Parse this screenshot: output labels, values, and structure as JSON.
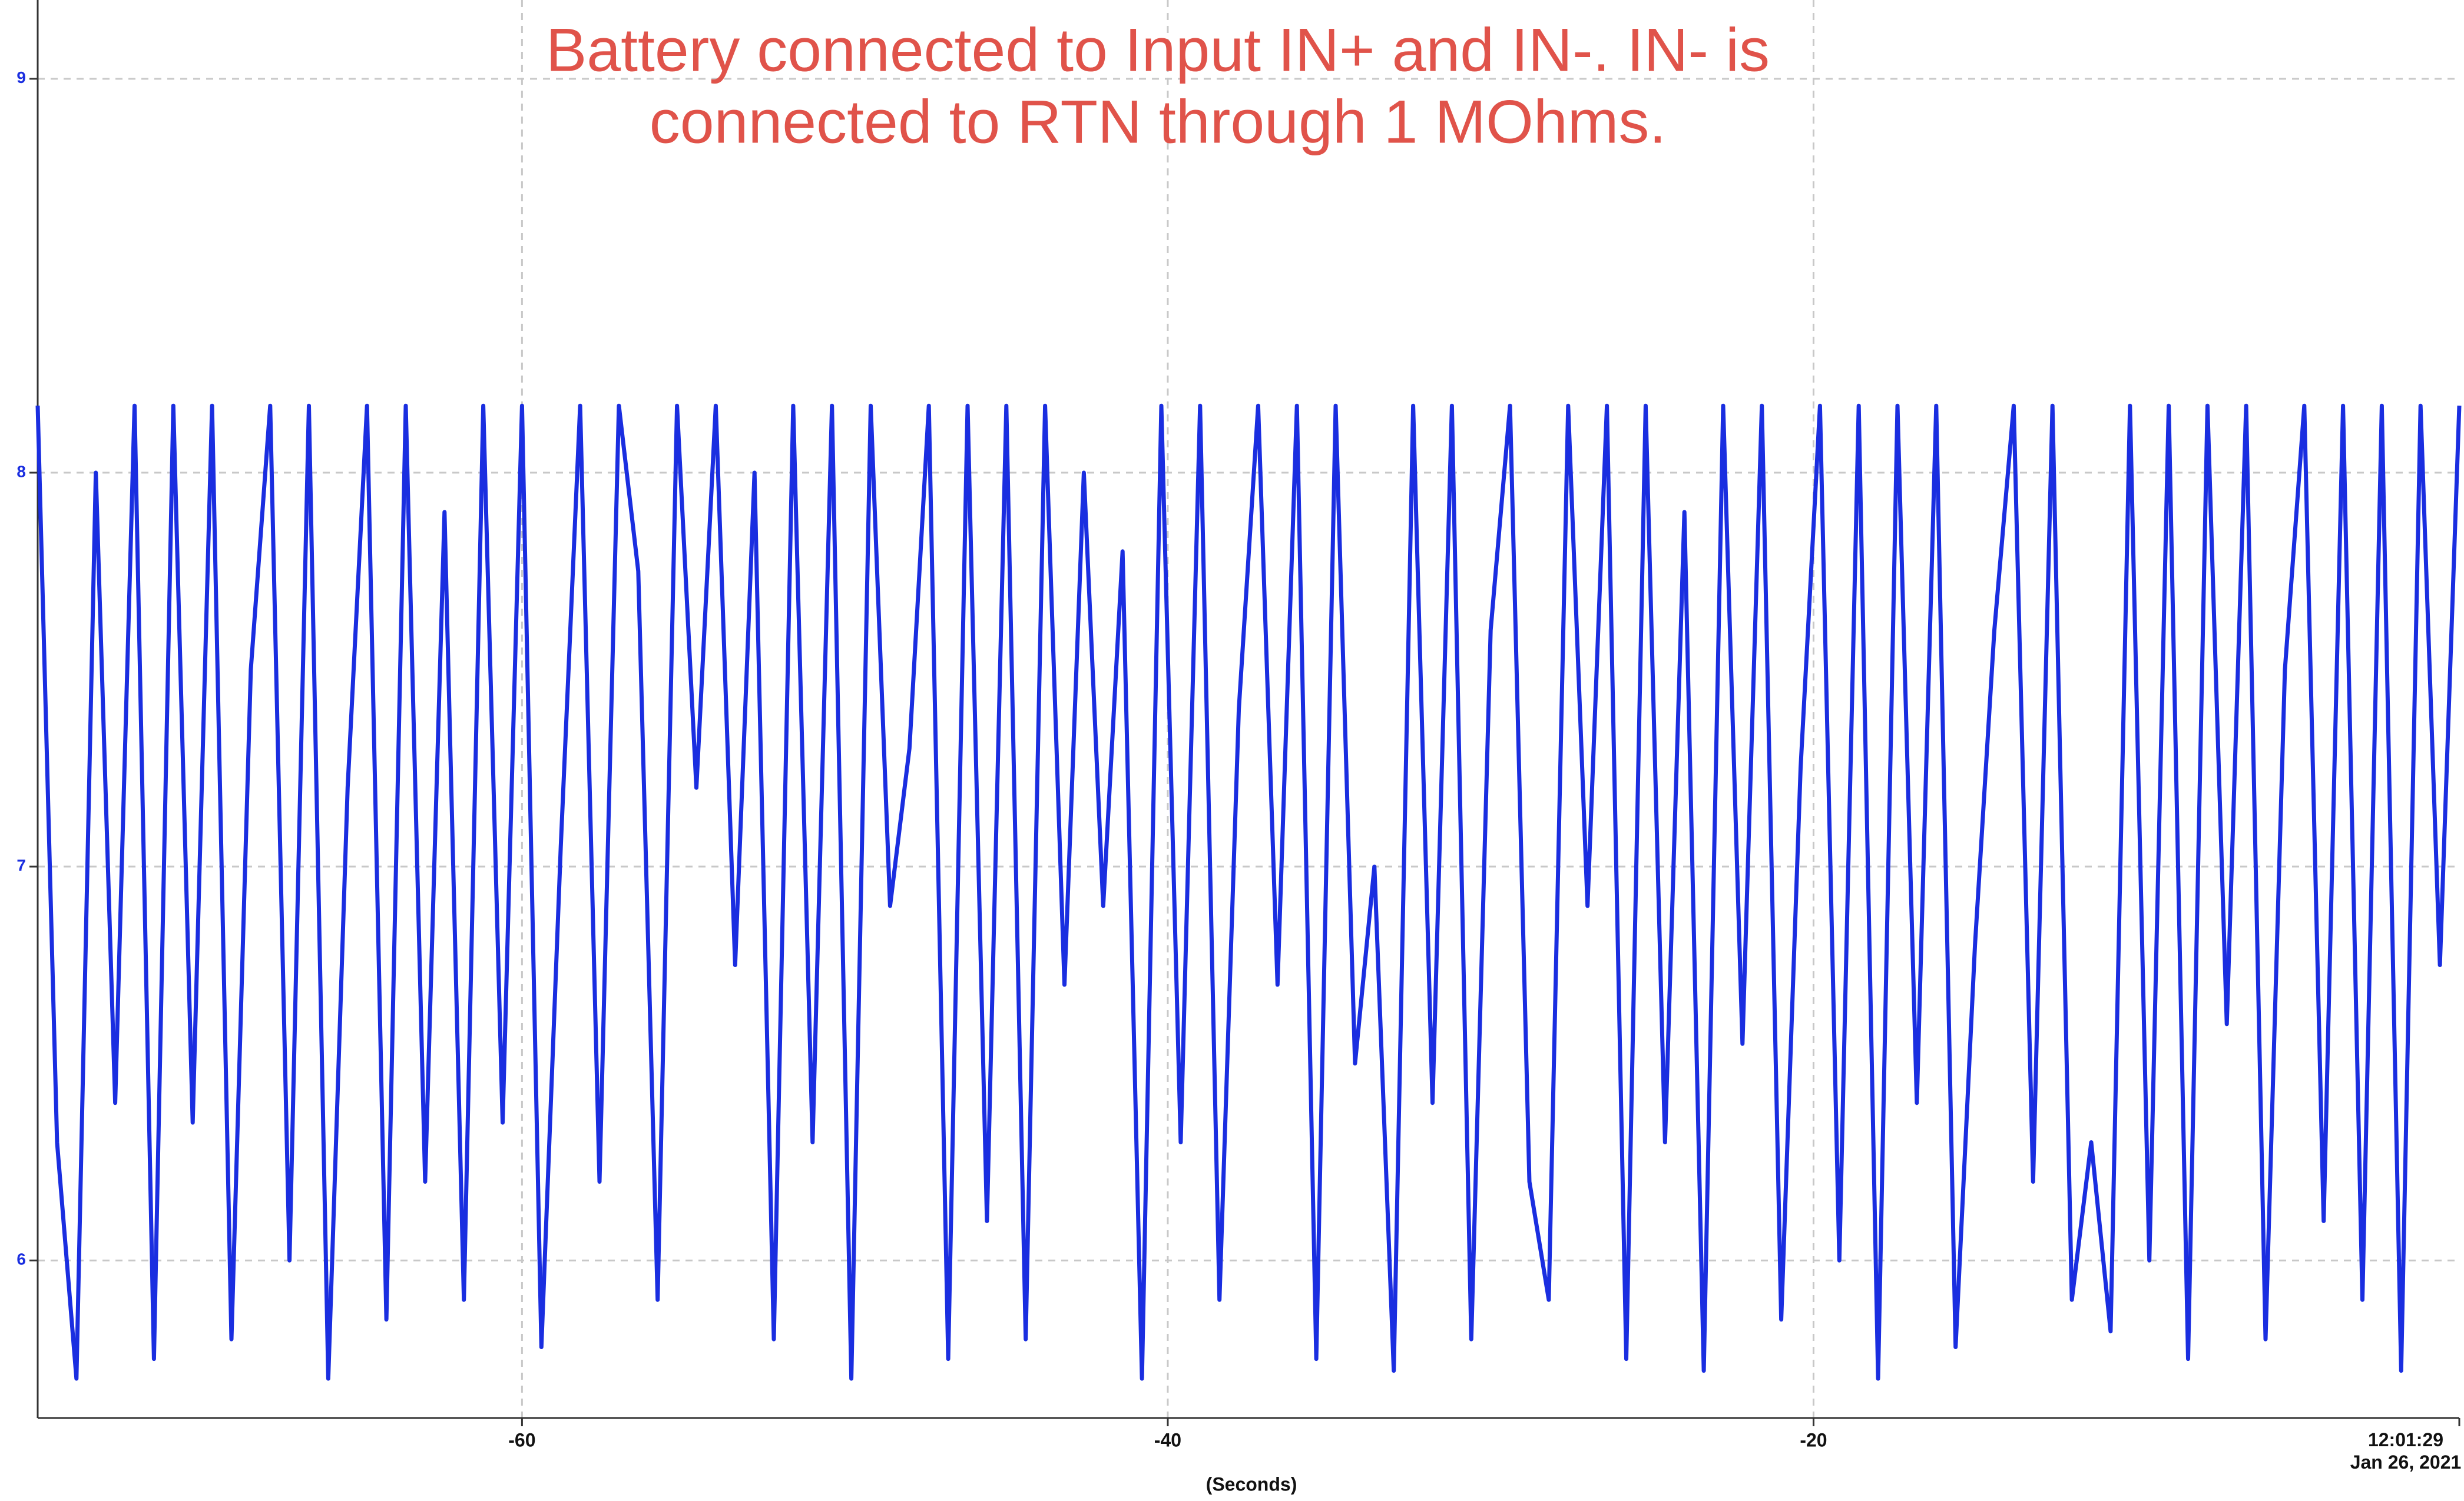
{
  "chart_data": {
    "type": "line",
    "annotation": [
      "Battery connected to Input IN+ and IN-. IN- is",
      "connected to RTN through 1 MOhms."
    ],
    "x_label": "(Seconds)",
    "xlim": [
      -75,
      0
    ],
    "ylim": [
      5.6,
      9.2
    ],
    "xticks": [
      -60,
      -40,
      -20,
      {
        "value": 0,
        "label": "12:01:29\nJan 26, 2021"
      }
    ],
    "yticks": [
      6,
      7,
      8,
      9
    ],
    "grid": true,
    "x": [
      -75,
      -74.4,
      -73.8,
      -73.2,
      -72.6,
      -72,
      -71.4,
      -70.8,
      -70.2,
      -69.6,
      -69,
      -68.4,
      -67.8,
      -67.2,
      -66.6,
      -66,
      -65.4,
      -64.8,
      -64.2,
      -63.6,
      -63,
      -62.4,
      -61.8,
      -61.2,
      -60.6,
      -60,
      -59.4,
      -58.8,
      -58.2,
      -57.6,
      -57,
      -56.4,
      -55.8,
      -55.2,
      -54.6,
      -54,
      -53.4,
      -52.8,
      -52.2,
      -51.6,
      -51,
      -50.4,
      -49.8,
      -49.2,
      -48.6,
      -48,
      -47.4,
      -46.8,
      -46.2,
      -45.6,
      -45,
      -44.4,
      -43.8,
      -43.2,
      -42.6,
      -42,
      -41.4,
      -40.8,
      -40.2,
      -39.6,
      -39,
      -38.4,
      -37.8,
      -37.2,
      -36.6,
      -36,
      -35.4,
      -34.8,
      -34.2,
      -33.6,
      -33,
      -32.4,
      -31.8,
      -31.2,
      -30.6,
      -30,
      -29.4,
      -28.8,
      -28.2,
      -27.6,
      -27,
      -26.4,
      -25.8,
      -25.2,
      -24.6,
      -24,
      -23.4,
      -22.8,
      -22.2,
      -21.6,
      -21,
      -20.4,
      -19.8,
      -19.2,
      -18.6,
      -18,
      -17.4,
      -16.8,
      -16.2,
      -15.6,
      -15,
      -14.4,
      -13.8,
      -13.2,
      -12.6,
      -12,
      -11.4,
      -10.8,
      -10.2,
      -9.6,
      -9,
      -8.4,
      -7.8,
      -7.2,
      -6.6,
      -6,
      -5.4,
      -4.8,
      -4.2,
      -3.6,
      -3,
      -2.4,
      -1.8,
      -1.2,
      -0.6,
      0
    ],
    "series": [
      {
        "color": "#1a2ee0",
        "values": [
          8.17,
          6.3,
          5.7,
          8.0,
          6.4,
          8.17,
          5.75,
          8.17,
          6.35,
          8.17,
          5.8,
          7.5,
          8.17,
          6.0,
          8.17,
          5.7,
          7.2,
          8.17,
          5.85,
          8.17,
          6.2,
          7.9,
          5.9,
          8.17,
          6.35,
          8.17,
          5.78,
          7.05,
          8.17,
          6.2,
          8.17,
          7.75,
          5.9,
          8.17,
          7.2,
          8.17,
          6.75,
          8.0,
          5.8,
          8.17,
          6.3,
          8.17,
          5.7,
          8.17,
          6.9,
          7.3,
          8.17,
          5.75,
          8.17,
          6.1,
          8.17,
          5.8,
          8.17,
          6.7,
          8.0,
          6.9,
          7.8,
          5.7,
          8.17,
          6.3,
          8.17,
          5.9,
          7.4,
          8.17,
          6.7,
          8.17,
          5.75,
          8.17,
          6.5,
          7.0,
          5.72,
          8.17,
          6.4,
          8.17,
          5.8,
          7.6,
          8.17,
          6.2,
          5.9,
          8.17,
          6.9,
          8.17,
          5.75,
          8.17,
          6.3,
          7.9,
          5.72,
          8.17,
          6.55,
          8.17,
          5.85,
          7.25,
          8.17,
          6.0,
          8.17,
          5.7,
          8.17,
          6.4,
          8.17,
          5.78,
          6.8,
          7.6,
          8.17,
          6.2,
          8.17,
          5.9,
          6.3,
          5.82,
          8.17,
          6.0,
          8.17,
          5.75,
          8.17,
          6.6,
          8.17,
          5.8,
          7.5,
          8.17,
          6.1,
          8.17,
          5.9,
          8.17,
          5.72,
          8.17,
          6.75,
          8.17
        ]
      }
    ]
  }
}
